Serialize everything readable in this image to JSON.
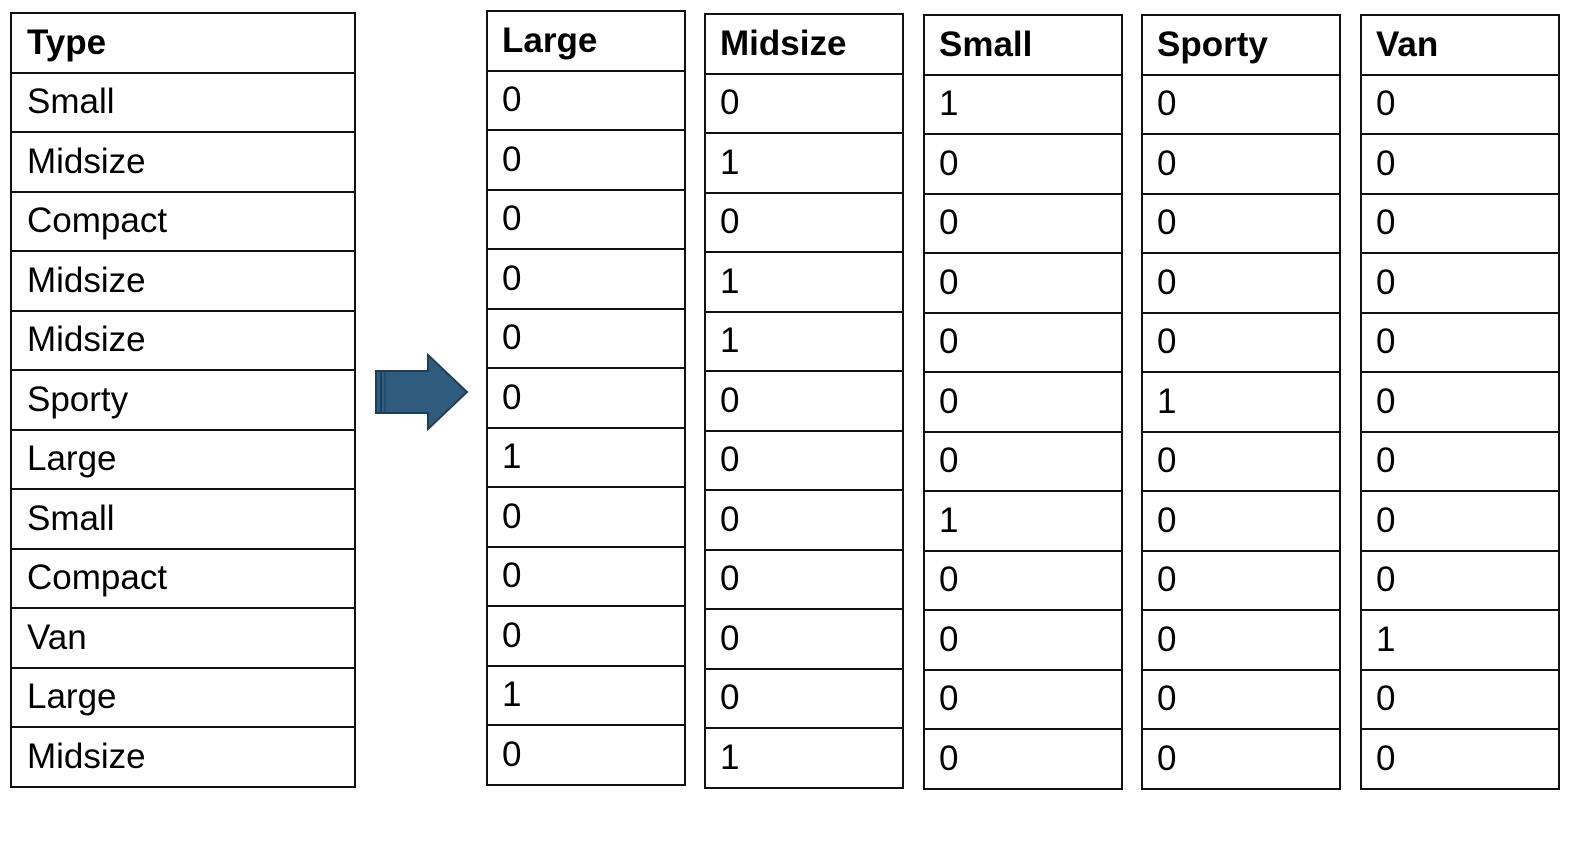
{
  "source": {
    "header": "Type",
    "values": [
      "Small",
      "Midsize",
      "Compact",
      "Midsize",
      "Midsize",
      "Sporty",
      "Large",
      "Small",
      "Compact",
      "Van",
      "Large",
      "Midsize"
    ]
  },
  "arrow": {
    "icon": "right-arrow-icon",
    "color": "#2e5b7e"
  },
  "dummies": [
    {
      "header": "Large",
      "values": [
        "0",
        "0",
        "0",
        "0",
        "0",
        "0",
        "1",
        "0",
        "0",
        "0",
        "1",
        "0"
      ]
    },
    {
      "header": "Midsize",
      "values": [
        "0",
        "1",
        "0",
        "1",
        "1",
        "0",
        "0",
        "0",
        "0",
        "0",
        "0",
        "1"
      ]
    },
    {
      "header": "Small",
      "values": [
        "1",
        "0",
        "0",
        "0",
        "0",
        "0",
        "0",
        "1",
        "0",
        "0",
        "0",
        "0"
      ]
    },
    {
      "header": "Sporty",
      "values": [
        "0",
        "0",
        "0",
        "0",
        "0",
        "1",
        "0",
        "0",
        "0",
        "0",
        "0",
        "0"
      ]
    },
    {
      "header": "Van",
      "values": [
        "0",
        "0",
        "0",
        "0",
        "0",
        "0",
        "0",
        "0",
        "0",
        "1",
        "0",
        "0"
      ]
    }
  ]
}
